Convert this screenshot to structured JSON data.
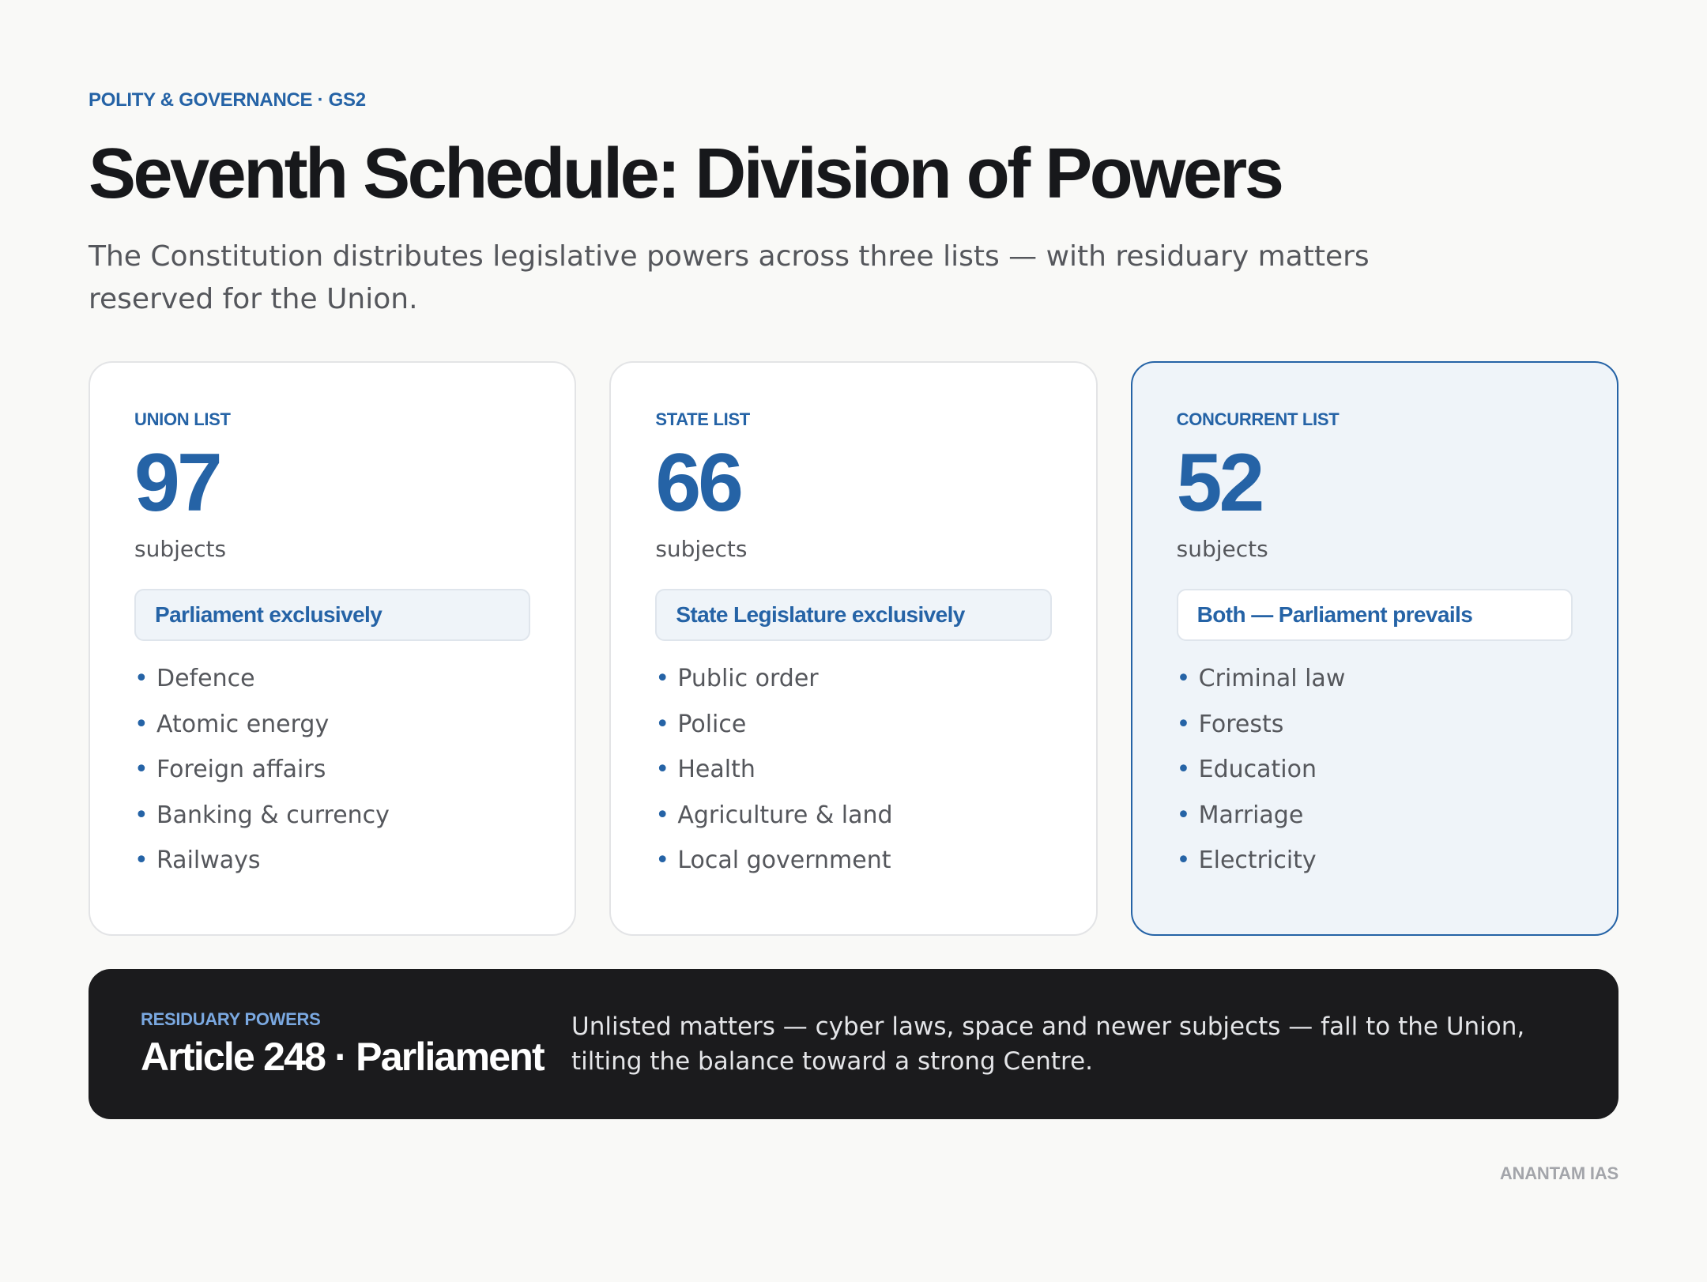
{
  "header": {
    "eyebrow": "POLITY & GOVERNANCE · GS2",
    "title": "Seventh Schedule: Division of Powers",
    "subtitle": "The Constitution distributes legislative powers across three lists — with residuary matters reserved for the Union."
  },
  "lists": [
    {
      "label": "UNION LIST",
      "count": "97",
      "unit": "subjects",
      "authority": "Parliament exclusively",
      "subjects": [
        "Defence",
        "Atomic energy",
        "Foreign affairs",
        "Banking & currency",
        "Railways"
      ]
    },
    {
      "label": "STATE LIST",
      "count": "66",
      "unit": "subjects",
      "authority": "State Legislature exclusively",
      "subjects": [
        "Public order",
        "Police",
        "Health",
        "Agriculture & land",
        "Local government"
      ]
    },
    {
      "label": "CONCURRENT LIST",
      "count": "52",
      "unit": "subjects",
      "authority": "Both — Parliament prevails",
      "subjects": [
        "Criminal law",
        "Forests",
        "Education",
        "Marriage",
        "Electricity"
      ]
    }
  ],
  "residuary": {
    "label": "RESIDUARY POWERS",
    "title": "Article 248 · Parliament",
    "description": "Unlisted matters — cyber laws, space and newer subjects — fall to the Union, tilting the balance toward a strong Centre."
  },
  "footer": {
    "brand": "ANANTAM IAS"
  },
  "colors": {
    "accent": "#2563a6",
    "dark_panel": "#1b1b1d",
    "residuary_accent": "#7aa8e0"
  }
}
